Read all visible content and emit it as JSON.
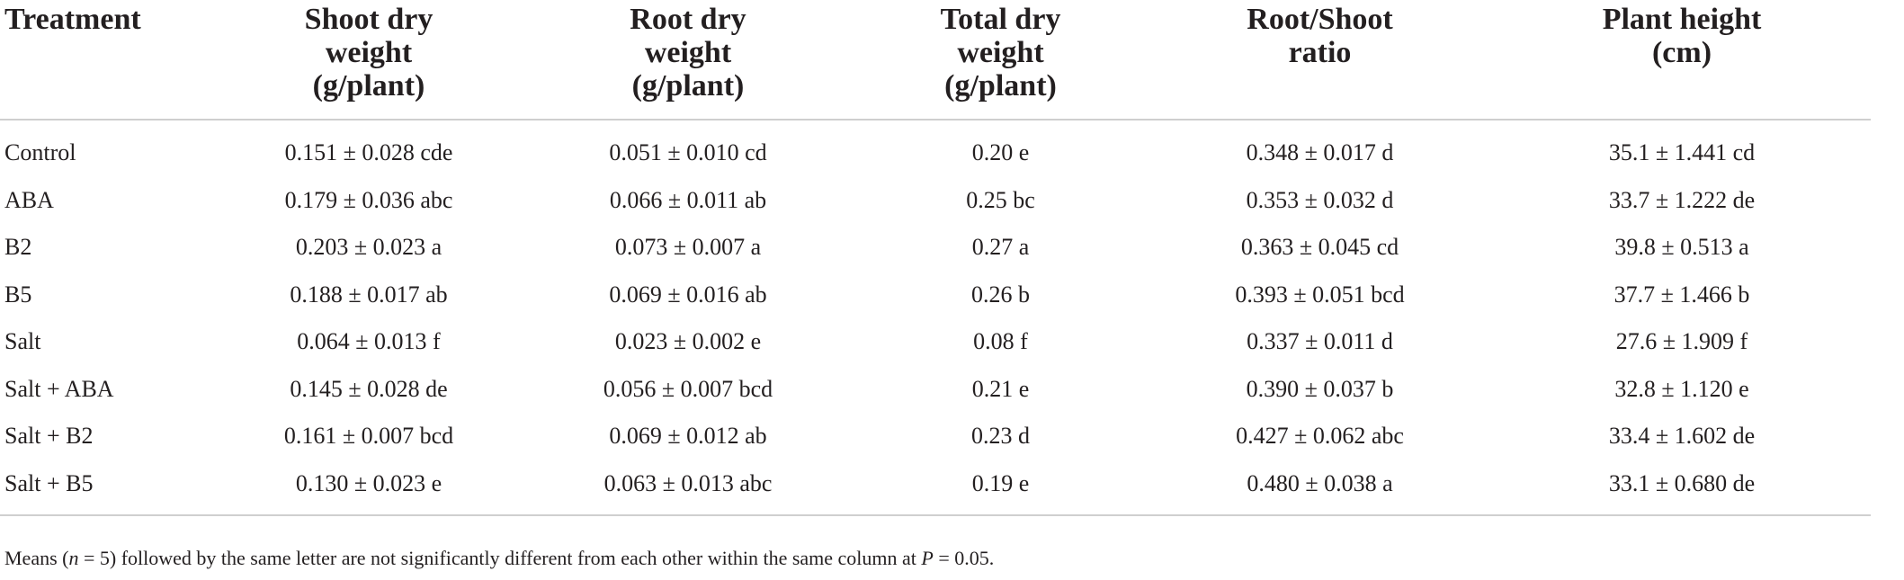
{
  "table": {
    "headers": [
      [
        "Treatment"
      ],
      [
        "Shoot dry",
        "weight",
        "(g/plant)"
      ],
      [
        "Root dry",
        "weight",
        "(g/plant)"
      ],
      [
        "Total dry",
        "weight",
        "(g/plant)"
      ],
      [
        "Root/Shoot",
        "ratio"
      ],
      [
        "Plant height",
        "(cm)"
      ]
    ],
    "rows": [
      [
        "Control",
        "0.151 ± 0.028 cde",
        "0.051 ± 0.010 cd",
        "0.20 e",
        "0.348 ± 0.017 d",
        "35.1 ± 1.441 cd"
      ],
      [
        "ABA",
        "0.179 ± 0.036 abc",
        "0.066 ± 0.011 ab",
        "0.25 bc",
        "0.353 ± 0.032 d",
        "33.7 ± 1.222 de"
      ],
      [
        "B2",
        "0.203 ± 0.023 a",
        "0.073 ± 0.007 a",
        "0.27 a",
        "0.363 ± 0.045 cd",
        "39.8 ± 0.513 a"
      ],
      [
        "B5",
        "0.188 ± 0.017 ab",
        "0.069 ± 0.016 ab",
        "0.26 b",
        "0.393 ± 0.051 bcd",
        "37.7 ± 1.466 b"
      ],
      [
        "Salt",
        "0.064 ± 0.013 f",
        "0.023 ± 0.002 e",
        "0.08 f",
        "0.337 ± 0.011 d",
        "27.6 ± 1.909 f"
      ],
      [
        "Salt + ABA",
        "0.145 ± 0.028 de",
        "0.056 ± 0.007 bcd",
        "0.21 e",
        "0.390 ± 0.037 b",
        "32.8 ± 1.120 e"
      ],
      [
        "Salt + B2",
        "0.161 ± 0.007 bcd",
        "0.069 ± 0.012 ab",
        "0.23 d",
        "0.427 ± 0.062 abc",
        "33.4 ± 1.602 de"
      ],
      [
        "Salt + B5",
        "0.130 ± 0.023 e",
        "0.063 ± 0.013 abc",
        "0.19 e",
        "0.480 ± 0.038 a",
        "33.1 ± 0.680 de"
      ]
    ]
  },
  "footnote": {
    "part1": "Means (",
    "n_var": "n",
    "part2": " = 5) followed by the same letter are not significantly different from each other within the same column at ",
    "p_var": "P",
    "part3": " = 0.05."
  }
}
